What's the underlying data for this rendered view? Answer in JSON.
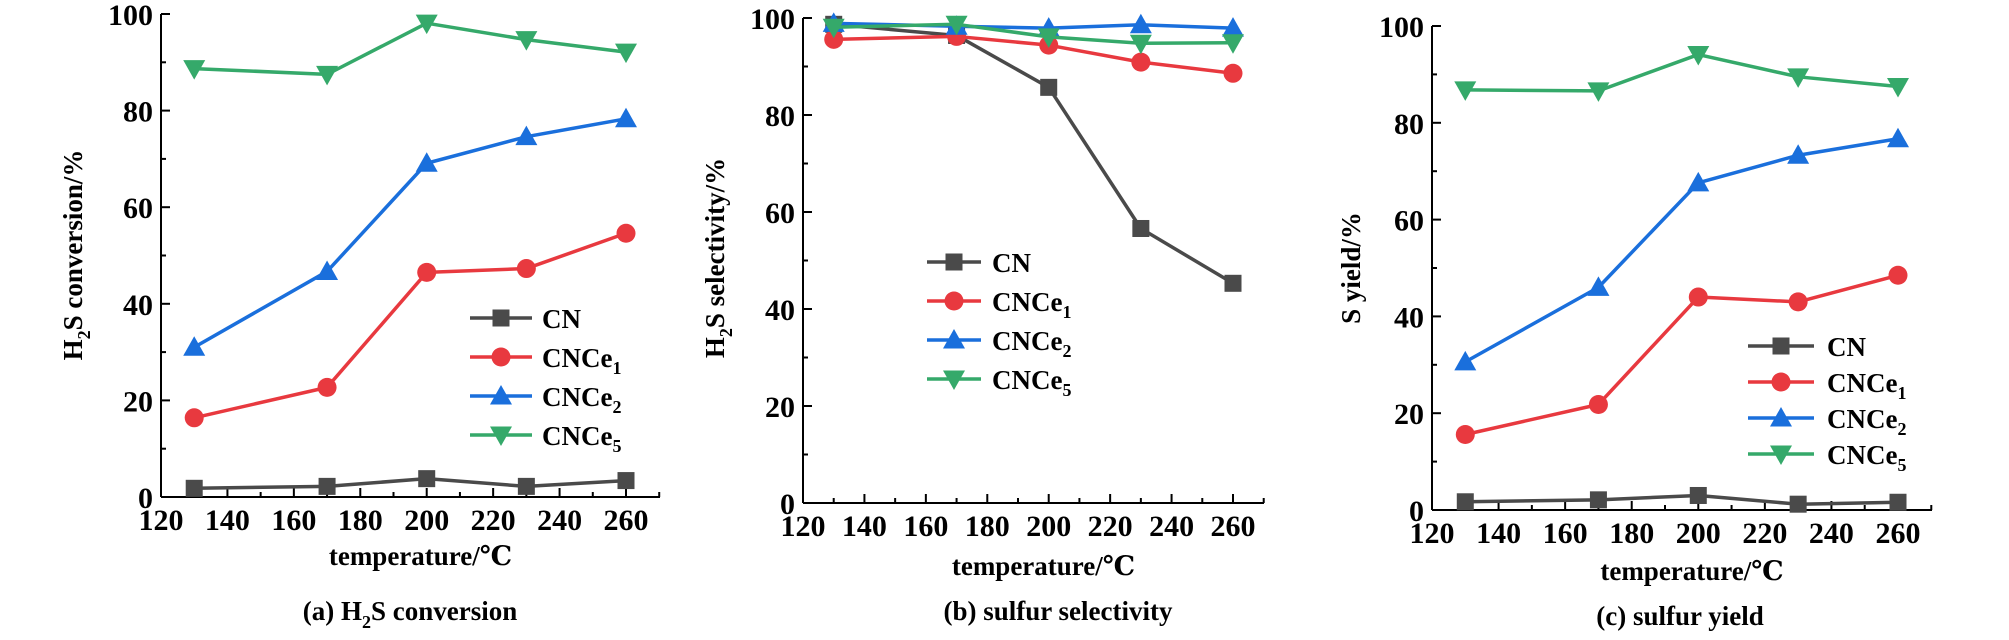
{
  "chart_data": [
    {
      "type": "line",
      "panel": "a",
      "caption": {
        "prefix": "(a) H",
        "sub": "2",
        "suffix": "S conversion"
      },
      "title": "(a) H2S conversion",
      "xlabel": "temperature/℃",
      "ylabel": {
        "prefix": "H",
        "sub": "2",
        "suffix": "S conversion/%"
      },
      "xlim": [
        120,
        270
      ],
      "ylim": [
        0,
        100
      ],
      "xticks": [
        120,
        140,
        160,
        180,
        200,
        220,
        240,
        260
      ],
      "yticks": [
        0,
        20,
        40,
        60,
        80,
        100
      ],
      "grid": false,
      "legend_position": "lower-right",
      "x": [
        130,
        170,
        200,
        230,
        260
      ],
      "series": [
        {
          "name": "CN",
          "label": {
            "base": "CN",
            "sub": ""
          },
          "marker": "square",
          "color": "#4a4a4a",
          "values": [
            1.8,
            2.2,
            3.8,
            2.2,
            3.4
          ]
        },
        {
          "name": "CNCe1",
          "label": {
            "base": "CNCe",
            "sub": "1"
          },
          "marker": "circle",
          "color": "#e8393f",
          "values": [
            16.4,
            22.7,
            46.5,
            47.3,
            54.6
          ]
        },
        {
          "name": "CNCe2",
          "label": {
            "base": "CNCe",
            "sub": "2"
          },
          "marker": "triangle-up",
          "color": "#1a6fdc",
          "values": [
            31.0,
            46.7,
            69.1,
            74.6,
            78.3
          ]
        },
        {
          "name": "CNCe5",
          "label": {
            "base": "CNCe",
            "sub": "5"
          },
          "marker": "triangle-down",
          "color": "#35a96a",
          "values": [
            88.7,
            87.5,
            98.1,
            94.7,
            92.1
          ]
        }
      ]
    },
    {
      "type": "line",
      "panel": "b",
      "caption": {
        "prefix": "(b) sulfur selectivity",
        "sub": "",
        "suffix": ""
      },
      "title": "(b) sulfur selectivity",
      "xlabel": "temperature/℃",
      "ylabel": {
        "prefix": "H",
        "sub": "2",
        "suffix": "S selectivity/%"
      },
      "xlim": [
        120,
        270
      ],
      "ylim": [
        0,
        100
      ],
      "xticks": [
        120,
        140,
        160,
        180,
        200,
        220,
        240,
        260
      ],
      "yticks": [
        0,
        20,
        40,
        60,
        80,
        100
      ],
      "grid": false,
      "legend_position": "center-left",
      "x": [
        130,
        170,
        200,
        230,
        260
      ],
      "series": [
        {
          "name": "CN",
          "label": {
            "base": "CN",
            "sub": ""
          },
          "marker": "square",
          "color": "#4a4a4a",
          "values": [
            98.7,
            96.4,
            85.7,
            56.6,
            45.3
          ]
        },
        {
          "name": "CNCe1",
          "label": {
            "base": "CNCe",
            "sub": "1"
          },
          "marker": "circle",
          "color": "#e8393f",
          "values": [
            95.6,
            96.2,
            94.4,
            90.9,
            88.6
          ]
        },
        {
          "name": "CNCe2",
          "label": {
            "base": "CNCe",
            "sub": "2"
          },
          "marker": "triangle-up",
          "color": "#1a6fdc",
          "values": [
            98.9,
            98.3,
            97.9,
            98.6,
            97.9
          ]
        },
        {
          "name": "CNCe5",
          "label": {
            "base": "CNCe",
            "sub": "5"
          },
          "marker": "triangle-down",
          "color": "#35a96a",
          "values": [
            98.1,
            98.7,
            96.1,
            94.8,
            94.9
          ]
        }
      ]
    },
    {
      "type": "line",
      "panel": "c",
      "caption": {
        "prefix": "(c) sulfur yield",
        "sub": "",
        "suffix": ""
      },
      "title": "(c) sulfur yield",
      "xlabel": "temperature/℃",
      "ylabel": {
        "prefix": "S yield/%",
        "sub": "",
        "suffix": ""
      },
      "xlim": [
        120,
        270
      ],
      "ylim": [
        0,
        100
      ],
      "xticks": [
        120,
        140,
        160,
        180,
        200,
        220,
        240,
        260
      ],
      "yticks": [
        0,
        20,
        40,
        60,
        80,
        100
      ],
      "grid": false,
      "legend_position": "lower-right",
      "x": [
        130,
        170,
        200,
        230,
        260
      ],
      "series": [
        {
          "name": "CN",
          "label": {
            "base": "CN",
            "sub": ""
          },
          "marker": "square",
          "color": "#4a4a4a",
          "values": [
            1.7,
            2.1,
            3.0,
            1.2,
            1.6
          ]
        },
        {
          "name": "CNCe1",
          "label": {
            "base": "CNCe",
            "sub": "1"
          },
          "marker": "circle",
          "color": "#e8393f",
          "values": [
            15.6,
            21.8,
            44.0,
            43.0,
            48.5
          ]
        },
        {
          "name": "CNCe2",
          "label": {
            "base": "CNCe",
            "sub": "2"
          },
          "marker": "triangle-up",
          "color": "#1a6fdc",
          "values": [
            30.6,
            46.0,
            67.6,
            73.3,
            76.7
          ]
        },
        {
          "name": "CNCe5",
          "label": {
            "base": "CNCe",
            "sub": "5"
          },
          "marker": "triangle-down",
          "color": "#35a96a",
          "values": [
            86.8,
            86.6,
            94.1,
            89.5,
            87.5
          ]
        }
      ]
    }
  ]
}
